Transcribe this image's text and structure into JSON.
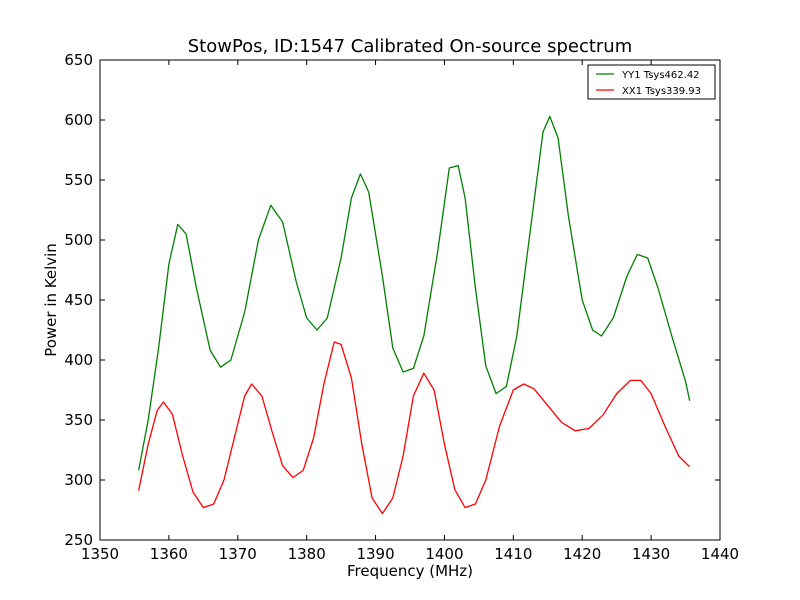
{
  "chart_data": {
    "type": "line",
    "title": "StowPos, ID:1547 Calibrated On-source spectrum",
    "xlabel": "Frequency (MHz)",
    "ylabel": "Power in Kelvin",
    "xlim": [
      1350,
      1440
    ],
    "ylim": [
      250,
      650
    ],
    "xticks": [
      "1350",
      "1360",
      "1370",
      "1380",
      "1390",
      "1400",
      "1410",
      "1420",
      "1430",
      "1440"
    ],
    "yticks": [
      "250",
      "300",
      "350",
      "400",
      "450",
      "500",
      "550",
      "600",
      "650"
    ],
    "grid": false,
    "legend_position": "top-right",
    "series": [
      {
        "name": "YY1 Tsys462.42",
        "color": "#008000",
        "points": [
          [
            1355.6,
            308
          ],
          [
            1357.0,
            350
          ],
          [
            1358.5,
            410
          ],
          [
            1360.0,
            480
          ],
          [
            1361.3,
            513
          ],
          [
            1362.5,
            505
          ],
          [
            1364.0,
            460
          ],
          [
            1366.0,
            408
          ],
          [
            1367.5,
            394
          ],
          [
            1369.0,
            400
          ],
          [
            1371.0,
            440
          ],
          [
            1373.0,
            500
          ],
          [
            1374.8,
            529
          ],
          [
            1376.5,
            515
          ],
          [
            1378.5,
            465
          ],
          [
            1380.0,
            435
          ],
          [
            1381.5,
            425
          ],
          [
            1383.0,
            435
          ],
          [
            1385.0,
            485
          ],
          [
            1386.5,
            535
          ],
          [
            1387.8,
            555
          ],
          [
            1389.0,
            540
          ],
          [
            1391.0,
            470
          ],
          [
            1392.5,
            410
          ],
          [
            1394.0,
            390
          ],
          [
            1395.5,
            393
          ],
          [
            1397.0,
            420
          ],
          [
            1399.0,
            490
          ],
          [
            1400.7,
            560
          ],
          [
            1402.0,
            562
          ],
          [
            1403.0,
            535
          ],
          [
            1404.5,
            460
          ],
          [
            1406.0,
            395
          ],
          [
            1407.5,
            372
          ],
          [
            1409.0,
            378
          ],
          [
            1410.5,
            420
          ],
          [
            1412.5,
            510
          ],
          [
            1414.3,
            590
          ],
          [
            1415.3,
            603
          ],
          [
            1416.5,
            585
          ],
          [
            1418.0,
            520
          ],
          [
            1420.0,
            450
          ],
          [
            1421.5,
            425
          ],
          [
            1422.8,
            420
          ],
          [
            1424.5,
            435
          ],
          [
            1426.5,
            470
          ],
          [
            1428.0,
            488
          ],
          [
            1429.5,
            485
          ],
          [
            1431.0,
            460
          ],
          [
            1433.0,
            420
          ],
          [
            1435.0,
            382
          ],
          [
            1435.6,
            366
          ]
        ]
      },
      {
        "name": "XX1 Tsys339.93",
        "color": "#ff0000",
        "points": [
          [
            1355.6,
            291
          ],
          [
            1357.0,
            330
          ],
          [
            1358.3,
            358
          ],
          [
            1359.2,
            365
          ],
          [
            1360.5,
            355
          ],
          [
            1362.0,
            320
          ],
          [
            1363.5,
            290
          ],
          [
            1365.0,
            277
          ],
          [
            1366.5,
            280
          ],
          [
            1368.0,
            300
          ],
          [
            1369.5,
            335
          ],
          [
            1371.0,
            370
          ],
          [
            1372.0,
            380
          ],
          [
            1373.5,
            370
          ],
          [
            1375.0,
            340
          ],
          [
            1376.5,
            312
          ],
          [
            1378.0,
            302
          ],
          [
            1379.5,
            308
          ],
          [
            1381.0,
            335
          ],
          [
            1382.5,
            380
          ],
          [
            1384.0,
            415
          ],
          [
            1385.0,
            413
          ],
          [
            1386.5,
            385
          ],
          [
            1388.0,
            330
          ],
          [
            1389.5,
            285
          ],
          [
            1391.0,
            272
          ],
          [
            1392.5,
            285
          ],
          [
            1394.0,
            320
          ],
          [
            1395.5,
            370
          ],
          [
            1397.0,
            389
          ],
          [
            1398.5,
            375
          ],
          [
            1400.0,
            330
          ],
          [
            1401.5,
            292
          ],
          [
            1403.0,
            277
          ],
          [
            1404.5,
            280
          ],
          [
            1406.0,
            300
          ],
          [
            1408.0,
            345
          ],
          [
            1410.0,
            375
          ],
          [
            1411.5,
            380
          ],
          [
            1413.0,
            376
          ],
          [
            1415.0,
            362
          ],
          [
            1417.0,
            348
          ],
          [
            1419.0,
            341
          ],
          [
            1421.0,
            343
          ],
          [
            1423.0,
            354
          ],
          [
            1425.0,
            372
          ],
          [
            1427.0,
            383
          ],
          [
            1428.5,
            383
          ],
          [
            1430.0,
            372
          ],
          [
            1432.0,
            345
          ],
          [
            1434.0,
            320
          ],
          [
            1435.6,
            311
          ]
        ]
      }
    ]
  }
}
